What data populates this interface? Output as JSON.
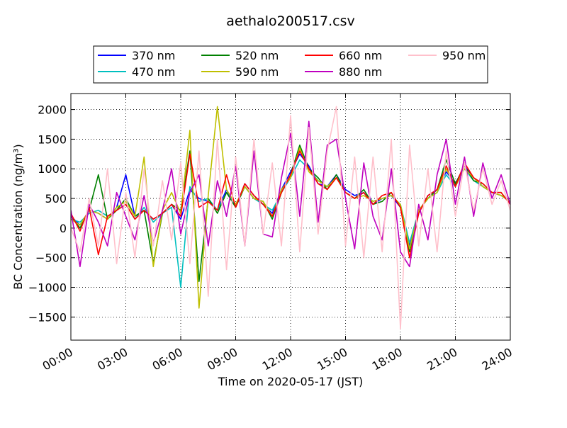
{
  "chart_data": {
    "type": "line",
    "title": "aethalo200517.csv",
    "xlabel": "Time on 2020-05-17 (JST)",
    "ylabel": "BC Concentration (ng/m³)",
    "x": [
      0,
      0.5,
      1,
      1.5,
      2,
      2.5,
      3,
      3.5,
      4,
      4.5,
      5,
      5.5,
      6,
      6.5,
      7,
      7.5,
      8,
      8.5,
      9,
      9.5,
      10,
      10.5,
      11,
      11.5,
      12,
      12.5,
      13,
      13.5,
      14,
      14.5,
      15,
      15.5,
      16,
      16.5,
      17,
      17.5,
      18,
      18.5,
      19,
      19.5,
      20,
      20.5,
      21,
      21.5,
      22,
      22.5,
      23,
      23.5,
      24
    ],
    "series": [
      {
        "name": "370 nm",
        "color": "#0000ff",
        "values": [
          200,
          50,
          300,
          250,
          150,
          350,
          900,
          200,
          300,
          150,
          250,
          400,
          150,
          650,
          500,
          450,
          300,
          650,
          350,
          750,
          550,
          400,
          250,
          650,
          950,
          1250,
          1050,
          750,
          700,
          900,
          650,
          550,
          600,
          400,
          500,
          550,
          350,
          -300,
          250,
          550,
          650,
          950,
          750,
          1050,
          850,
          700,
          600,
          550,
          450
        ]
      },
      {
        "name": "470 nm",
        "color": "#00bfbf",
        "values": [
          150,
          100,
          250,
          300,
          200,
          300,
          400,
          150,
          350,
          100,
          250,
          350,
          -1000,
          700,
          450,
          500,
          300,
          600,
          400,
          700,
          500,
          400,
          300,
          600,
          850,
          1150,
          1000,
          800,
          700,
          850,
          600,
          500,
          600,
          450,
          500,
          550,
          400,
          -250,
          300,
          500,
          600,
          900,
          700,
          1000,
          800,
          700,
          600,
          550,
          450
        ]
      },
      {
        "name": "520 nm",
        "color": "#008000",
        "values": [
          200,
          0,
          300,
          900,
          150,
          300,
          500,
          200,
          300,
          -600,
          250,
          400,
          300,
          1300,
          -900,
          500,
          250,
          600,
          350,
          700,
          500,
          450,
          150,
          600,
          900,
          1400,
          1000,
          850,
          650,
          900,
          600,
          500,
          650,
          400,
          450,
          600,
          350,
          -400,
          300,
          500,
          650,
          1150,
          750,
          1050,
          800,
          750,
          600,
          600,
          400
        ]
      },
      {
        "name": "590 nm",
        "color": "#bfbf00",
        "values": [
          150,
          50,
          300,
          250,
          150,
          350,
          450,
          200,
          1200,
          -650,
          300,
          600,
          250,
          1650,
          -1350,
          550,
          2050,
          650,
          400,
          700,
          500,
          450,
          200,
          650,
          850,
          1350,
          950,
          800,
          700,
          850,
          600,
          500,
          550,
          450,
          500,
          550,
          400,
          -350,
          300,
          500,
          600,
          1000,
          700,
          1000,
          850,
          700,
          600,
          550,
          450
        ]
      },
      {
        "name": "660 nm",
        "color": "#ff0000",
        "values": [
          250,
          -50,
          350,
          -450,
          200,
          300,
          400,
          150,
          300,
          150,
          250,
          400,
          200,
          1250,
          350,
          450,
          300,
          900,
          350,
          750,
          550,
          400,
          200,
          600,
          900,
          1300,
          1000,
          750,
          650,
          850,
          600,
          500,
          600,
          400,
          550,
          600,
          350,
          -500,
          250,
          550,
          650,
          1050,
          700,
          1100,
          850,
          750,
          600,
          600,
          400
        ]
      },
      {
        "name": "880 nm",
        "color": "#bf00bf",
        "values": [
          300,
          -650,
          400,
          100,
          -300,
          600,
          200,
          -200,
          550,
          -250,
          300,
          1000,
          -100,
          600,
          900,
          -300,
          800,
          200,
          1050,
          -300,
          1300,
          -100,
          -150,
          850,
          1600,
          200,
          1800,
          100,
          1400,
          1500,
          500,
          -350,
          1100,
          200,
          -200,
          1000,
          -400,
          -650,
          400,
          -200,
          900,
          1500,
          400,
          1200,
          200,
          1100,
          500,
          900,
          400
        ]
      },
      {
        "name": "950 nm",
        "color": "#ffc0cb",
        "values": [
          0,
          -400,
          500,
          -300,
          1000,
          -600,
          600,
          -500,
          1000,
          -300,
          800,
          -200,
          1100,
          -600,
          1300,
          -1150,
          1500,
          -700,
          1200,
          -300,
          1500,
          -100,
          1100,
          -300,
          1900,
          -400,
          1700,
          -100,
          1300,
          2050,
          -300,
          1200,
          -500,
          1200,
          -400,
          1500,
          -1700,
          1400,
          -300,
          1000,
          -400,
          1300,
          200,
          1100,
          300,
          1000,
          400,
          800,
          300
        ]
      }
    ],
    "xlim": [
      0,
      24
    ],
    "xticks": [
      {
        "value": 0,
        "label": "00:00"
      },
      {
        "value": 3,
        "label": "03:00"
      },
      {
        "value": 6,
        "label": "06:00"
      },
      {
        "value": 9,
        "label": "09:00"
      },
      {
        "value": 12,
        "label": "12:00"
      },
      {
        "value": 15,
        "label": "15:00"
      },
      {
        "value": 18,
        "label": "18:00"
      },
      {
        "value": 21,
        "label": "21:00"
      },
      {
        "value": 24,
        "label": "24:00"
      }
    ],
    "ylim": [
      -1890,
      2270
    ],
    "yticks": [
      {
        "value": -1500,
        "label": "−1500"
      },
      {
        "value": -1000,
        "label": "−1000"
      },
      {
        "value": -500,
        "label": "−500"
      },
      0,
      500,
      1000,
      1500,
      2000
    ],
    "grid": true,
    "legend": "upper center",
    "legend_columns": 4
  }
}
